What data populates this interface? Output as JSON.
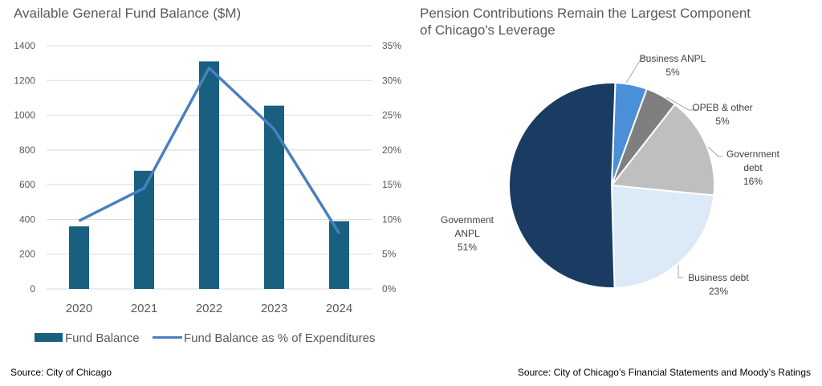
{
  "chart_data": [
    {
      "type": "bar",
      "title": "Available General Fund Balance ($M)",
      "categories": [
        "2020",
        "2021",
        "2022",
        "2023",
        "2024"
      ],
      "series": [
        {
          "name": "Fund Balance",
          "kind": "bar",
          "axis": "left",
          "values": [
            360,
            680,
            1310,
            1055,
            390
          ],
          "color": "#195f80"
        },
        {
          "name": "Fund Balance as % of Expenditures",
          "kind": "line",
          "axis": "right",
          "values": [
            9.8,
            14.5,
            31.8,
            23.0,
            8.0
          ],
          "color": "#4a7fc1"
        }
      ],
      "ylim": [
        0,
        1400
      ],
      "yticks": [
        "0",
        "200",
        "400",
        "600",
        "800",
        "1000",
        "1200",
        "1400"
      ],
      "y2lim": [
        0,
        35
      ],
      "y2ticks": [
        "0%",
        "5%",
        "10%",
        "15%",
        "20%",
        "25%",
        "30%",
        "35%"
      ],
      "grid": true,
      "legend": "bottom",
      "source": "Source: City of Chicago"
    },
    {
      "type": "pie",
      "title_lines": [
        "Pension Contributions Remain the Largest Component",
        "of Chicago's Leverage"
      ],
      "slices": [
        {
          "label_lines": [
            "Business ANPL"
          ],
          "pct_label": "5%",
          "value": 5,
          "color": "#4a90d9"
        },
        {
          "label_lines": [
            "OPEB & other"
          ],
          "pct_label": "5%",
          "value": 5,
          "color": "#7f7f7f"
        },
        {
          "label_lines": [
            "Government",
            "debt"
          ],
          "pct_label": "16%",
          "value": 16,
          "color": "#bfbfbf"
        },
        {
          "label_lines": [
            "Business debt"
          ],
          "pct_label": "23%",
          "value": 23,
          "color": "#dce9f6"
        },
        {
          "label_lines": [
            "Government",
            "ANPL"
          ],
          "pct_label": "51%",
          "value": 51,
          "color": "#1a3c62"
        }
      ],
      "source": "Source: City of Chicago’s Financial Statements and Moody’s Ratings"
    }
  ]
}
